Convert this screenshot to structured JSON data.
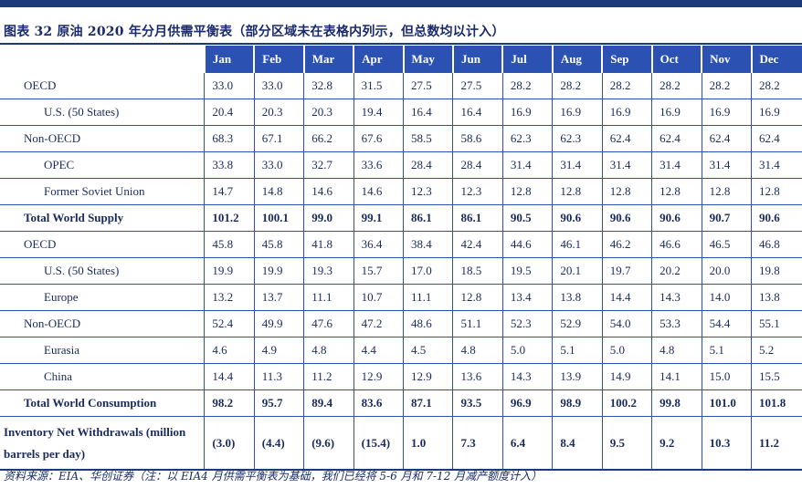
{
  "title": "图表 32   原油 2020 年分月供需平衡表（部分区域未在表格内列示，但总数均以计入）",
  "columns": [
    "Jan",
    "Feb",
    "Mar",
    "Apr",
    "May",
    "Jun",
    "Jul",
    "Aug",
    "Sep",
    "Oct",
    "Nov",
    "Dec"
  ],
  "rows": [
    {
      "label": "OECD",
      "level": 1,
      "values": [
        "33.0",
        "33.0",
        "32.8",
        "31.5",
        "27.5",
        "27.5",
        "28.2",
        "28.2",
        "28.2",
        "28.2",
        "28.2",
        "28.2"
      ]
    },
    {
      "label": "U.S. (50 States)",
      "level": 2,
      "values": [
        "20.4",
        "20.3",
        "20.3",
        "19.4",
        "16.4",
        "16.4",
        "16.9",
        "16.9",
        "16.9",
        "16.9",
        "16.9",
        "16.9"
      ]
    },
    {
      "label": "Non-OECD",
      "level": 1,
      "values": [
        "68.3",
        "67.1",
        "66.2",
        "67.6",
        "58.5",
        "58.6",
        "62.3",
        "62.3",
        "62.4",
        "62.4",
        "62.4",
        "62.4"
      ]
    },
    {
      "label": "OPEC",
      "level": 2,
      "values": [
        "33.8",
        "33.0",
        "32.7",
        "33.6",
        "28.4",
        "28.4",
        "31.4",
        "31.4",
        "31.4",
        "31.4",
        "31.4",
        "31.4"
      ]
    },
    {
      "label": "Former Soviet Union",
      "level": 2,
      "values": [
        "14.7",
        "14.8",
        "14.6",
        "14.6",
        "12.3",
        "12.3",
        "12.8",
        "12.8",
        "12.8",
        "12.8",
        "12.8",
        "12.8"
      ]
    },
    {
      "label": "Total World Supply",
      "level": 1,
      "total": true,
      "values": [
        "101.2",
        "100.1",
        "99.0",
        "99.1",
        "86.1",
        "86.1",
        "90.5",
        "90.6",
        "90.6",
        "90.6",
        "90.7",
        "90.6"
      ]
    },
    {
      "label": "OECD",
      "level": 1,
      "values": [
        "45.8",
        "45.8",
        "41.8",
        "36.4",
        "38.4",
        "42.4",
        "44.6",
        "46.1",
        "46.2",
        "46.6",
        "46.5",
        "46.8"
      ]
    },
    {
      "label": "U.S. (50 States)",
      "level": 2,
      "values": [
        "19.9",
        "19.9",
        "19.3",
        "15.7",
        "17.0",
        "18.5",
        "19.5",
        "20.1",
        "19.7",
        "20.2",
        "20.0",
        "19.8"
      ]
    },
    {
      "label": "Europe",
      "level": 2,
      "values": [
        "13.2",
        "13.7",
        "11.1",
        "10.7",
        "11.1",
        "12.8",
        "13.4",
        "13.8",
        "14.4",
        "14.3",
        "14.0",
        "13.8"
      ]
    },
    {
      "label": "Non-OECD",
      "level": 1,
      "values": [
        "52.4",
        "49.9",
        "47.6",
        "47.2",
        "48.6",
        "51.1",
        "52.3",
        "52.9",
        "54.0",
        "53.3",
        "54.4",
        "55.1"
      ]
    },
    {
      "label": "Eurasia",
      "level": 2,
      "values": [
        "4.6",
        "4.9",
        "4.8",
        "4.4",
        "4.5",
        "4.8",
        "5.0",
        "5.1",
        "5.0",
        "4.8",
        "5.1",
        "5.2"
      ]
    },
    {
      "label": "China",
      "level": 2,
      "values": [
        "14.4",
        "11.3",
        "11.2",
        "12.9",
        "12.9",
        "13.6",
        "14.3",
        "13.9",
        "14.9",
        "14.1",
        "15.0",
        "15.5"
      ]
    },
    {
      "label": "Total World Consumption",
      "level": 1,
      "total": true,
      "values": [
        "98.2",
        "95.7",
        "89.4",
        "83.6",
        "87.1",
        "93.5",
        "96.9",
        "98.9",
        "100.2",
        "99.8",
        "101.0",
        "101.8"
      ]
    },
    {
      "label": "Inventory Net Withdrawals (million barrels per day)",
      "level": 0,
      "inv": true,
      "values": [
        "(3.0)",
        "(4.4)",
        "(9.6)",
        "(15.4)",
        "1.0",
        "7.3",
        "6.4",
        "8.4",
        "9.5",
        "9.2",
        "10.3",
        "11.2"
      ]
    }
  ],
  "source": "资料来源：EIA、华创证券（注：以 EIA4 月供需平衡表为基础，我们已经将 5-6 月和 7-12 月减产额度计入）"
}
